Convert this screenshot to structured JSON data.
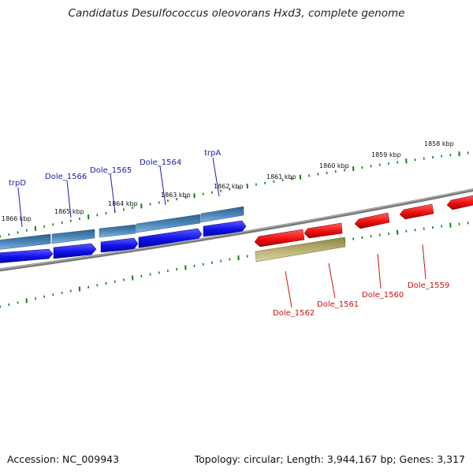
{
  "title": "Candidatus Desulfococcus oleovorans Hxd3, complete genome",
  "footer": {
    "accession": "Accession: NC_009943",
    "topology": "Topology: circular; Length: 3,944,167 bp; Genes: 3,317"
  },
  "colors": {
    "forward_gene": "#1010e8",
    "forward_operon": "#4a84b8",
    "reverse_gene": "#ee1010",
    "reverse_operon": "#b8b070",
    "backbone": "#8a8a8a",
    "tick": "#137f13",
    "forward_label": "#1a1ab0",
    "reverse_label": "#cc1010"
  },
  "scale_labels": [
    "1866 kbp",
    "1865 kbp",
    "1864 kbp",
    "1863 kbp",
    "1862 kbp",
    "1861 kbp",
    "1860 kbp",
    "1859 kbp",
    "1858 kbp"
  ],
  "forward_genes": [
    "trpD",
    "Dole_1566",
    "Dole_1565",
    "Dole_1564",
    "trpA"
  ],
  "reverse_genes": [
    "Dole_1562",
    "Dole_1561",
    "Dole_1560",
    "Dole_1559"
  ]
}
